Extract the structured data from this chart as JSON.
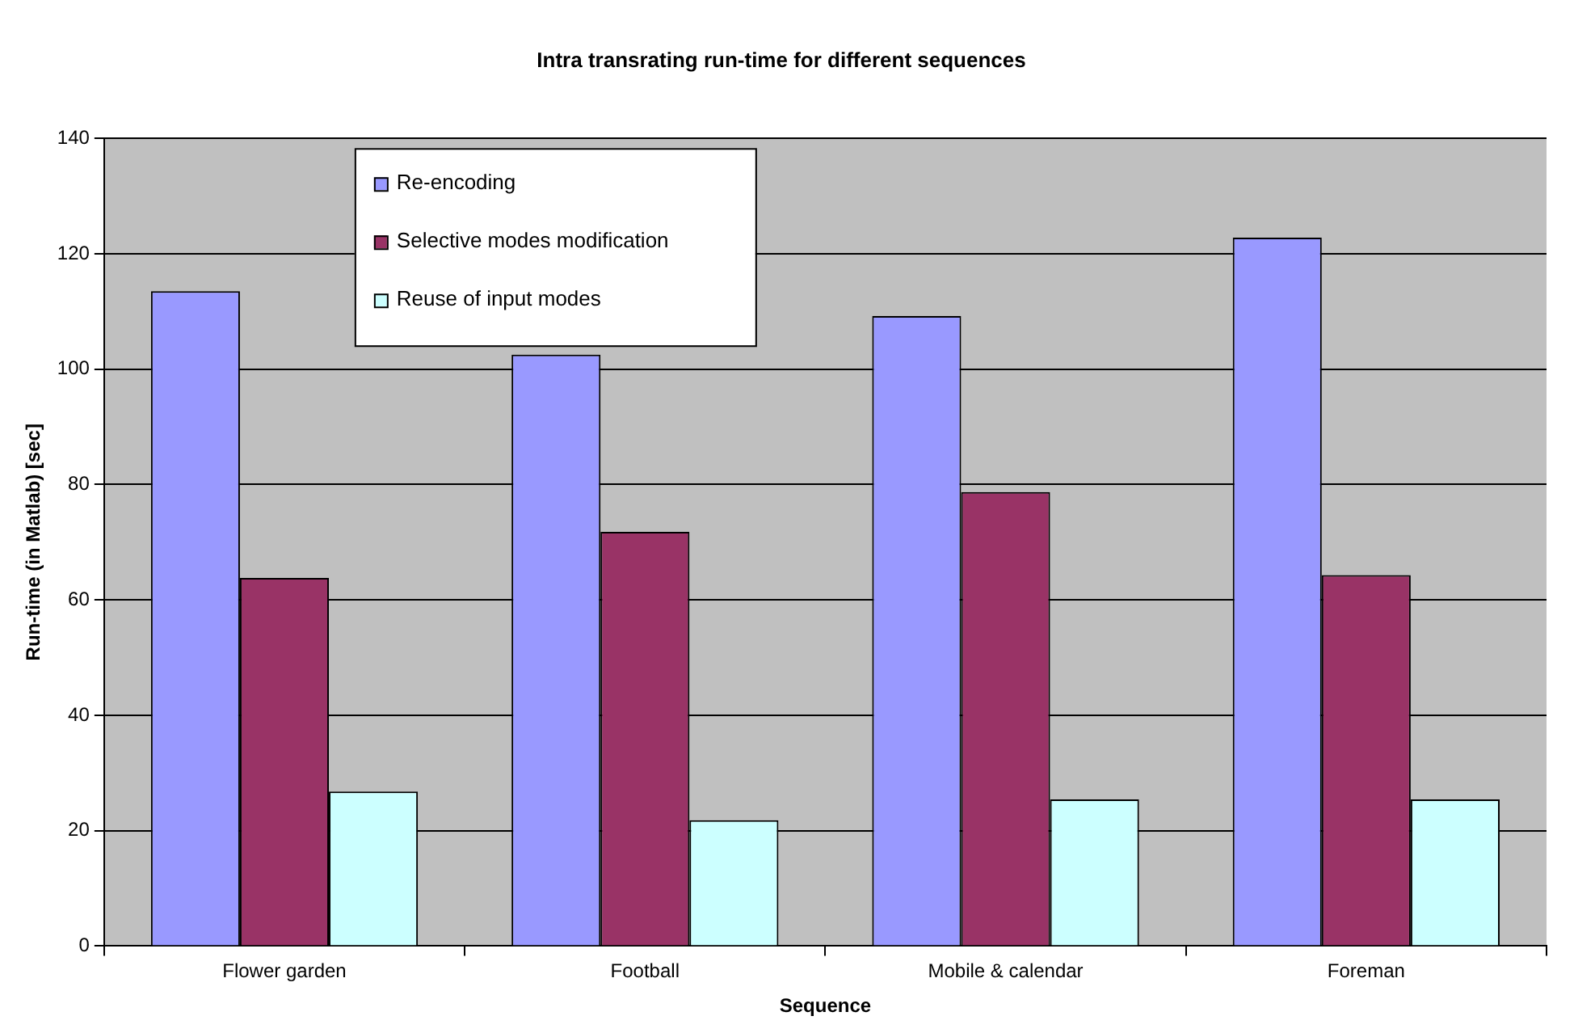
{
  "chart_data": {
    "type": "bar",
    "title": "Intra transrating run-time for different sequences",
    "xlabel": "Sequence",
    "ylabel": "Run-time (in Matlab) [sec]",
    "categories": [
      "Flower garden",
      "Football",
      "Mobile & calendar",
      "Foreman"
    ],
    "series": [
      {
        "name": "Re-encoding",
        "color": "#9999ff",
        "values": [
          113.5,
          102.5,
          109.2,
          122.8
        ]
      },
      {
        "name": "Selective modes modification",
        "color": "#993366",
        "values": [
          63.8,
          71.8,
          78.7,
          64.3
        ]
      },
      {
        "name": "Reuse of input modes",
        "color": "#ccffff",
        "values": [
          26.8,
          21.8,
          25.4,
          25.4
        ]
      }
    ],
    "ylim": [
      0,
      140
    ],
    "yticks": [
      0,
      20,
      40,
      60,
      80,
      100,
      120,
      140
    ],
    "grid": "y",
    "legend": "top left"
  }
}
